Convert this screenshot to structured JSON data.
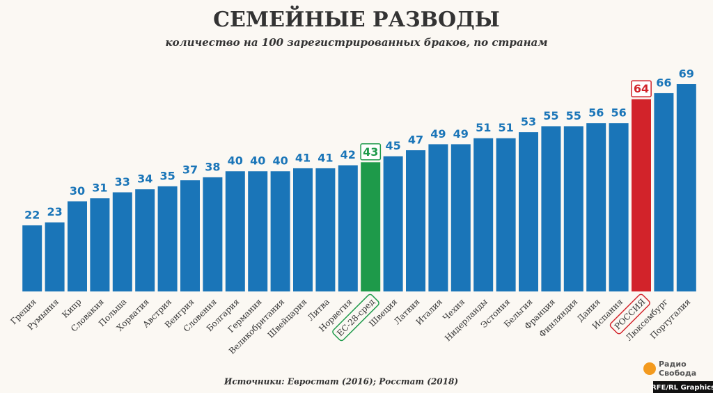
{
  "chart_data": {
    "type": "bar",
    "title": "СЕМЕЙНЫЕ РАЗВОДЫ",
    "subtitle": "количество на 100 зарегистрированных браков, по странам",
    "categories": [
      "Греция",
      "Румыния",
      "Кипр",
      "Словакия",
      "Польша",
      "Хорватия",
      "Австрия",
      "Венгрия",
      "Словения",
      "Болгария",
      "Германия",
      "Великобритания",
      "Швейцария",
      "Литва",
      "Норвегия",
      "ЕС-28-сред",
      "Швеция",
      "Латвия",
      "Италия",
      "Чехия",
      "Нидерланды",
      "Эстония",
      "Бельгия",
      "Франция",
      "Финляндия",
      "Дания",
      "Испания",
      "РОССИЯ",
      "Люксембург",
      "Португалия"
    ],
    "values": [
      22,
      23,
      30,
      31,
      33,
      34,
      35,
      37,
      38,
      40,
      40,
      40,
      41,
      41,
      42,
      43,
      45,
      47,
      49,
      49,
      51,
      51,
      53,
      55,
      55,
      56,
      56,
      64,
      66,
      69
    ],
    "color": "#1a75b8",
    "colors": [
      "#1a75b8",
      "#1a75b8",
      "#1a75b8",
      "#1a75b8",
      "#1a75b8",
      "#1a75b8",
      "#1a75b8",
      "#1a75b8",
      "#1a75b8",
      "#1a75b8",
      "#1a75b8",
      "#1a75b8",
      "#1a75b8",
      "#1a75b8",
      "#1a75b8",
      "#1e9a4a",
      "#1a75b8",
      "#1a75b8",
      "#1a75b8",
      "#1a75b8",
      "#1a75b8",
      "#1a75b8",
      "#1a75b8",
      "#1a75b8",
      "#1a75b8",
      "#1a75b8",
      "#1a75b8",
      "#d2232a",
      "#1a75b8",
      "#1a75b8"
    ],
    "source": "Источники: Евростат (2016); Росстат (2018)",
    "logo": [
      "Радио",
      "Свобода"
    ],
    "credit": "RFE/RL Graphics"
  }
}
